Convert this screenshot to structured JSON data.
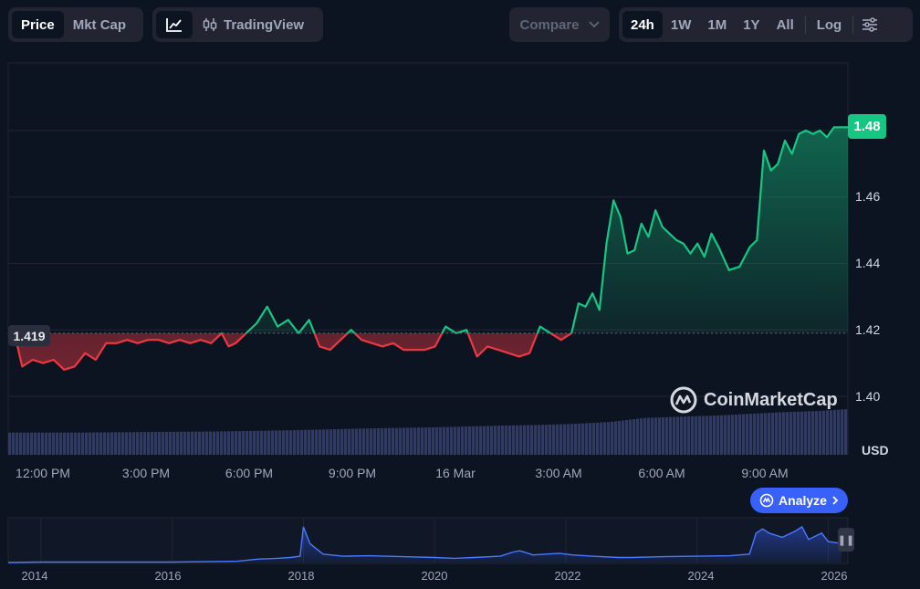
{
  "toolbar": {
    "type_tabs": [
      "Price",
      "Mkt Cap"
    ],
    "active_type": "Price",
    "tradingview_label": "TradingView",
    "compare_label": "Compare",
    "ranges": [
      "24h",
      "1W",
      "1M",
      "1Y",
      "All"
    ],
    "active_range": "24h",
    "log_label": "Log"
  },
  "price_tag": "1.48",
  "open_tag": "1.419",
  "watermark": "CoinMarketCap",
  "analyze_label": "Analyze",
  "colors": {
    "background": "#0d1421",
    "up": "#16c784",
    "down": "#ea3943",
    "volume": "#2f3a6b",
    "navigator": "#3861fb",
    "accent": "#3861fb"
  },
  "chart_data": [
    {
      "type": "line",
      "y_unit": "USD",
      "y_ticks": [
        "1.48",
        "1.46",
        "1.44",
        "1.42",
        "1.40"
      ],
      "ylim": [
        1.39,
        1.5
      ],
      "x_ticks": [
        "12:00 PM",
        "3:00 PM",
        "6:00 PM",
        "9:00 PM",
        "16 Mar",
        "3:00 AM",
        "6:00 AM",
        "9:00 AM"
      ],
      "x_hours": [
        0,
        3,
        6,
        9,
        12,
        15,
        18,
        21
      ],
      "xlim": [
        -0.2,
        23.8
      ],
      "baseline": 1.419,
      "grid": true,
      "series": [
        {
          "x": [
            -0.2,
            0.0,
            0.2,
            0.5,
            0.8,
            1.1,
            1.4,
            1.7,
            2.0,
            2.3,
            2.6,
            2.9,
            3.2,
            3.5,
            3.8,
            4.1,
            4.4,
            4.7,
            5.0,
            5.3,
            5.6,
            5.9,
            6.1,
            6.3,
            6.6,
            6.9,
            7.2,
            7.5,
            7.8,
            8.1,
            8.4,
            8.7,
            9.0,
            9.3,
            9.6,
            9.9,
            10.2,
            10.5,
            10.8,
            11.1,
            11.4,
            11.7,
            12.0,
            12.3,
            12.6,
            12.9,
            13.2,
            13.5,
            13.8,
            14.1,
            14.4,
            14.7,
            15.0,
            15.3,
            15.6,
            15.9,
            16.1,
            16.3,
            16.5,
            16.7,
            16.9,
            17.1,
            17.3,
            17.5,
            17.7,
            17.9,
            18.1,
            18.3,
            18.5,
            18.7,
            18.9,
            19.1,
            19.3,
            19.5,
            19.7,
            19.9,
            20.1,
            20.4,
            20.7,
            21.0,
            21.2,
            21.4,
            21.6,
            21.8,
            22.0,
            22.2,
            22.4,
            22.6,
            22.8,
            23.0,
            23.2,
            23.4,
            23.6,
            23.8
          ],
          "y": [
            1.419,
            1.418,
            1.409,
            1.411,
            1.41,
            1.411,
            1.408,
            1.409,
            1.413,
            1.411,
            1.416,
            1.416,
            1.417,
            1.416,
            1.417,
            1.417,
            1.416,
            1.417,
            1.416,
            1.417,
            1.416,
            1.419,
            1.415,
            1.416,
            1.419,
            1.422,
            1.427,
            1.421,
            1.423,
            1.419,
            1.423,
            1.415,
            1.414,
            1.417,
            1.42,
            1.417,
            1.416,
            1.415,
            1.416,
            1.414,
            1.414,
            1.414,
            1.415,
            1.421,
            1.419,
            1.42,
            1.412,
            1.415,
            1.414,
            1.413,
            1.412,
            1.413,
            1.421,
            1.419,
            1.417,
            1.419,
            1.428,
            1.427,
            1.431,
            1.426,
            1.446,
            1.459,
            1.454,
            1.443,
            1.444,
            1.452,
            1.448,
            1.456,
            1.451,
            1.449,
            1.447,
            1.446,
            1.443,
            1.446,
            1.442,
            1.449,
            1.445,
            1.438,
            1.439,
            1.445,
            1.447,
            1.474,
            1.468,
            1.47,
            1.477,
            1.473,
            1.479,
            1.48,
            1.479,
            1.48,
            1.478,
            1.481,
            1.481,
            1.481
          ]
        }
      ],
      "volume": {
        "x": [
          0,
          2,
          4,
          6,
          8,
          10,
          12,
          14,
          15,
          16,
          17,
          18,
          19,
          20,
          21,
          22,
          23,
          23.8
        ],
        "y": [
          0.38,
          0.38,
          0.39,
          0.4,
          0.42,
          0.45,
          0.47,
          0.5,
          0.51,
          0.53,
          0.56,
          0.63,
          0.65,
          0.67,
          0.7,
          0.73,
          0.75,
          0.78
        ]
      }
    },
    {
      "type": "area",
      "x_ticks": [
        "2014",
        "2016",
        "2018",
        "2020",
        "2022",
        "2024",
        "2026"
      ],
      "x": [
        2013.5,
        2014,
        2015,
        2016,
        2017,
        2017.3,
        2017.6,
        2017.8,
        2017.95,
        2018.0,
        2018.1,
        2018.3,
        2018.6,
        2019,
        2019.5,
        2020,
        2020.3,
        2020.6,
        2021,
        2021.2,
        2021.3,
        2021.5,
        2021.7,
        2021.9,
        2022.1,
        2022.4,
        2022.8,
        2023,
        2023.5,
        2024,
        2024.5,
        2024.8,
        2024.9,
        2025.0,
        2025.1,
        2025.3,
        2025.5,
        2025.6,
        2025.7,
        2025.9,
        2026.0,
        2026.2
      ],
      "y": [
        0.0,
        0.01,
        0.01,
        0.01,
        0.03,
        0.08,
        0.1,
        0.12,
        0.15,
        0.85,
        0.45,
        0.2,
        0.15,
        0.16,
        0.14,
        0.12,
        0.1,
        0.12,
        0.15,
        0.25,
        0.28,
        0.18,
        0.2,
        0.22,
        0.18,
        0.15,
        0.12,
        0.12,
        0.14,
        0.15,
        0.16,
        0.2,
        0.7,
        0.8,
        0.7,
        0.6,
        0.75,
        0.85,
        0.55,
        0.7,
        0.5,
        0.45
      ],
      "xlim": [
        2013.5,
        2026.3
      ]
    }
  ]
}
